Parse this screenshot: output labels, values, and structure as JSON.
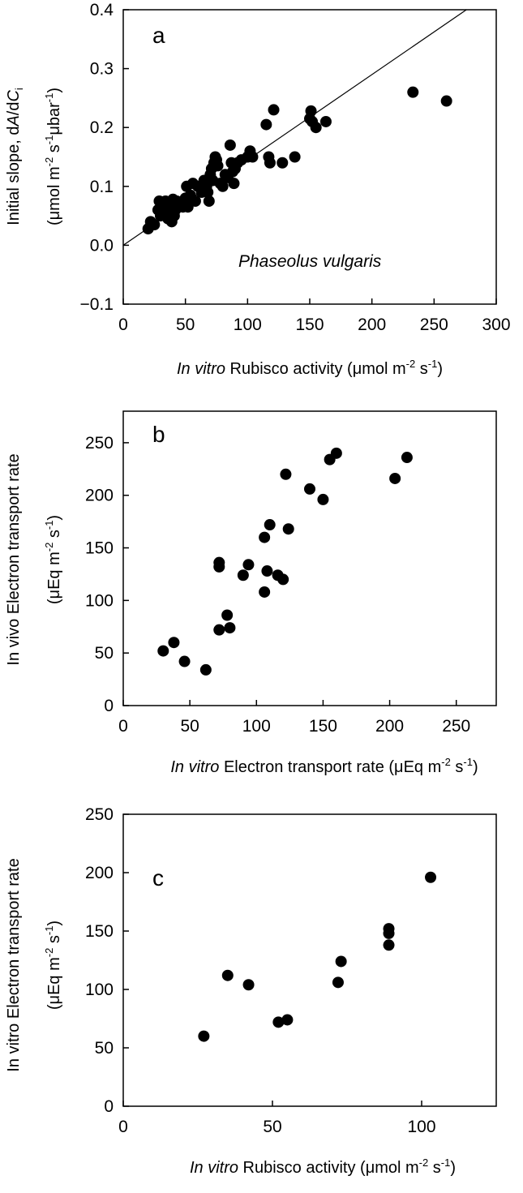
{
  "colors": {
    "ink": "#000000",
    "background": "#ffffff"
  },
  "chart_data": [
    {
      "type": "scatter",
      "panel": "a",
      "xlim": [
        0,
        300
      ],
      "ylim": [
        -0.1,
        0.4
      ],
      "xticks": [
        "0",
        "50",
        "100",
        "150",
        "200",
        "250",
        "300"
      ],
      "yticks": [
        "−0.1",
        "0.0",
        "0.1",
        "0.2",
        "0.3",
        "0.4"
      ],
      "xlabel": {
        "italic": "In vitro",
        "text": " Rubisco activity (μmol m",
        "sup1": "-2",
        "mid": " s",
        "sup2": "-1",
        "end": ")"
      },
      "ylabel_line1": {
        "text": "Initial slope, d",
        "italic1": "A",
        "mid": "/d",
        "italic2": "C",
        "sub": "i"
      },
      "ylabel_line2": {
        "text": "(μmol m",
        "sup1": "-2",
        "mid": " s",
        "sup2": "-1",
        "mid2": "μbar",
        "sup3": "-1",
        "end": ")"
      },
      "annotation": "Phaseolus vulgaris",
      "grid": false,
      "fit_line": {
        "x": [
          0,
          276
        ],
        "y": [
          0.0,
          0.4
        ]
      },
      "series": [
        {
          "x": [
            20,
            22,
            25,
            28,
            29,
            30,
            31,
            32,
            33,
            34,
            35,
            36,
            37,
            38,
            39,
            40,
            41,
            42,
            43,
            45,
            48,
            50,
            51,
            52,
            54,
            56,
            58,
            60,
            63,
            65,
            67,
            68,
            69,
            70,
            71,
            72,
            73,
            74,
            75,
            76,
            78,
            80,
            82,
            84,
            86,
            87,
            88,
            89,
            90,
            92,
            95,
            100,
            102,
            104,
            115,
            117,
            118,
            121,
            128,
            138,
            150,
            151,
            152,
            155,
            163,
            233,
            260
          ],
          "y": [
            0.028,
            0.04,
            0.035,
            0.06,
            0.075,
            0.05,
            0.07,
            0.065,
            0.055,
            0.075,
            0.06,
            0.045,
            0.07,
            0.065,
            0.04,
            0.078,
            0.05,
            0.06,
            0.075,
            0.07,
            0.065,
            0.08,
            0.1,
            0.065,
            0.085,
            0.105,
            0.075,
            0.1,
            0.09,
            0.11,
            0.1,
            0.09,
            0.075,
            0.12,
            0.13,
            0.11,
            0.14,
            0.15,
            0.145,
            0.135,
            0.105,
            0.1,
            0.12,
            0.115,
            0.17,
            0.14,
            0.125,
            0.105,
            0.13,
            0.14,
            0.145,
            0.15,
            0.16,
            0.15,
            0.205,
            0.15,
            0.14,
            0.23,
            0.14,
            0.15,
            0.215,
            0.228,
            0.21,
            0.2,
            0.21,
            0.26,
            0.245
          ]
        }
      ]
    },
    {
      "type": "scatter",
      "panel": "b",
      "xlim": [
        0,
        280
      ],
      "ylim": [
        0,
        280
      ],
      "xticks": [
        "0",
        "50",
        "100",
        "150",
        "200",
        "250"
      ],
      "yticks": [
        "0",
        "50",
        "100",
        "150",
        "200",
        "250"
      ],
      "xlabel": {
        "italic": "In vitro",
        "text": " Electron transport rate (μEq m",
        "sup1": "-2",
        "mid": " s",
        "sup2": "-1",
        "end": ")"
      },
      "ylabel_line1": {
        "text": "In vivo Electron transport rate"
      },
      "ylabel_line2": {
        "text": "(μEq m",
        "sup1": "-2",
        "mid": " s",
        "sup2": "-1",
        "end": ")"
      },
      "grid": false,
      "series": [
        {
          "x": [
            30,
            38,
            46,
            62,
            72,
            72,
            72,
            78,
            80,
            90,
            94,
            106,
            106,
            108,
            110,
            116,
            120,
            122,
            124,
            140,
            150,
            155,
            160,
            204,
            213
          ],
          "y": [
            52,
            60,
            42,
            34,
            72,
            136,
            132,
            86,
            74,
            124,
            134,
            160,
            108,
            128,
            172,
            124,
            120,
            220,
            168,
            206,
            196,
            234,
            240,
            216,
            236
          ]
        }
      ]
    },
    {
      "type": "scatter",
      "panel": "c",
      "xlim": [
        0,
        125
      ],
      "ylim": [
        0,
        250
      ],
      "xticks": [
        "0",
        "50",
        "100"
      ],
      "yticks": [
        "0",
        "50",
        "100",
        "150",
        "200",
        "250"
      ],
      "xlabel": {
        "italic": "In vitro",
        "text": " Rubisco activity (μmol m",
        "sup1": "-2",
        "mid": " s",
        "sup2": "-1",
        "end": ")"
      },
      "ylabel_line1": {
        "text": "In vitro Electron transport rate"
      },
      "ylabel_line2": {
        "text": "(μEq m",
        "sup1": "-2",
        "mid": " s",
        "sup2": "-1",
        "end": ")"
      },
      "grid": false,
      "series": [
        {
          "x": [
            27,
            35,
            42,
            52,
            55,
            72,
            73,
            89,
            89,
            89,
            103
          ],
          "y": [
            60,
            112,
            104,
            72,
            74,
            106,
            124,
            152,
            148,
            138,
            196
          ]
        }
      ]
    }
  ]
}
